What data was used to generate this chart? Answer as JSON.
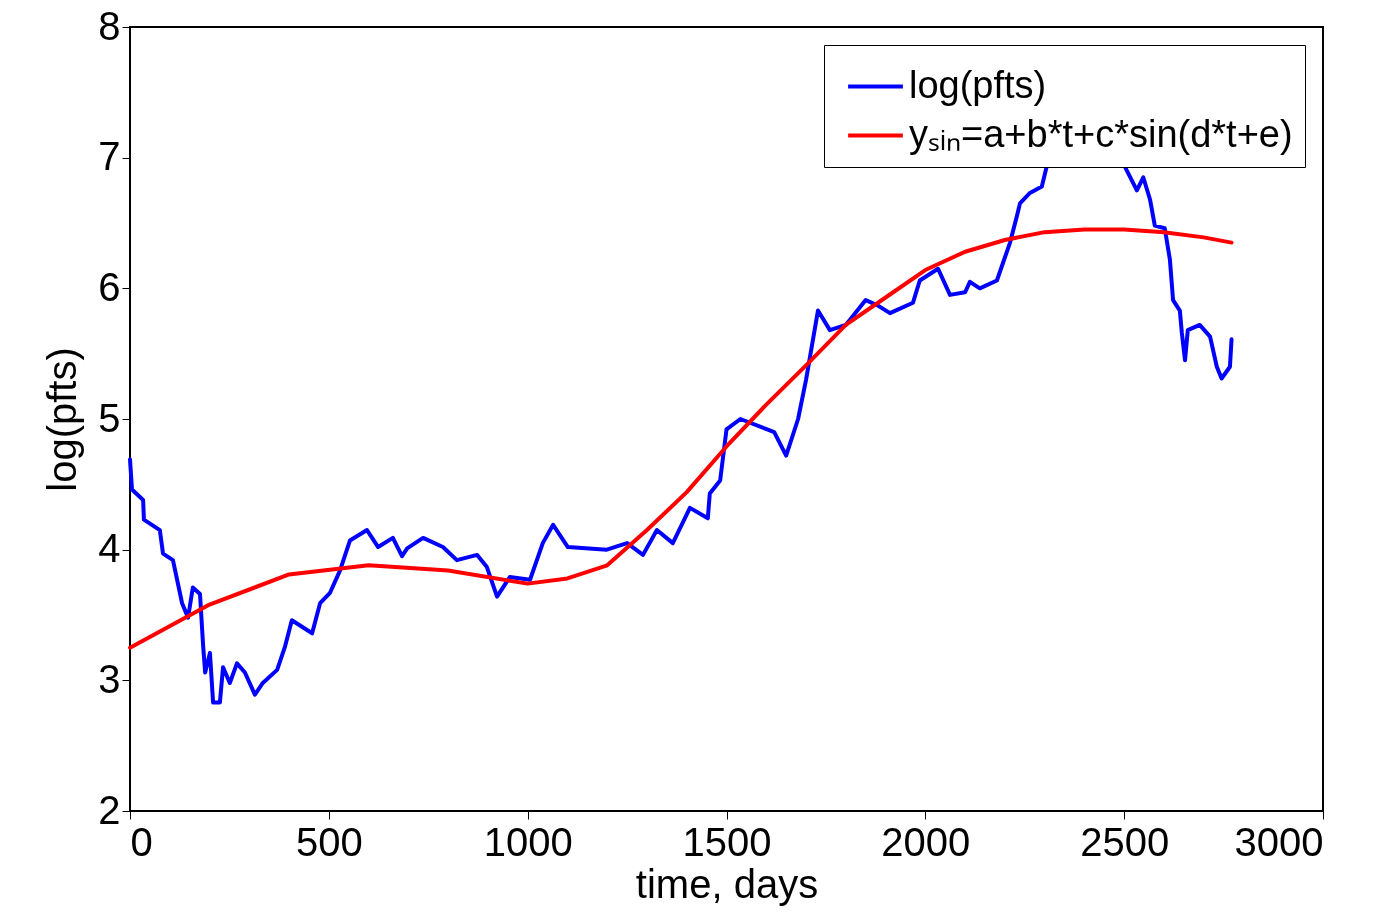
{
  "chart_data": {
    "type": "line",
    "xlabel": "time, days",
    "ylabel": "log(pfts)",
    "xlim": [
      0,
      3000
    ],
    "xticks": [
      0,
      500,
      1000,
      1500,
      2000,
      2500,
      3000
    ],
    "ylim": [
      2,
      8
    ],
    "yticks": [
      2,
      3,
      4,
      5,
      6,
      7,
      8
    ],
    "grid": false,
    "legend": "top right",
    "line_style": "solid",
    "marker": "none",
    "series": [
      {
        "name": "log(pfts)",
        "color": "#0000ff",
        "x": [
          0,
          5,
          33,
          35,
          75,
          83,
          108,
          131,
          146,
          158,
          176,
          184,
          189,
          201,
          209,
          226,
          234,
          251,
          269,
          289,
          314,
          334,
          370,
          390,
          407,
          458,
          478,
          503,
          528,
          553,
          596,
          624,
          661,
          684,
          697,
          737,
          787,
          822,
          873,
          897,
          923,
          955,
          1006,
          1038,
          1064,
          1101,
          1199,
          1250,
          1290,
          1325,
          1365,
          1408,
          1453,
          1458,
          1484,
          1500,
          1535,
          1620,
          1650,
          1680,
          1700,
          1730,
          1760,
          1800,
          1850,
          1880,
          1911,
          1969,
          1986,
          2032,
          2062,
          2100,
          2112,
          2137,
          2180,
          2213,
          2230,
          2238,
          2263,
          2293,
          2305,
          2400,
          2502,
          2532,
          2548,
          2565,
          2577,
          2602,
          2615,
          2623,
          2640,
          2645,
          2653,
          2660,
          2690,
          2716,
          2733,
          2745,
          2766,
          2770
        ],
        "values": [
          4.69,
          4.46,
          4.38,
          4.23,
          4.15,
          3.97,
          3.92,
          3.59,
          3.48,
          3.71,
          3.66,
          3.26,
          3.06,
          3.21,
          2.83,
          2.83,
          3.1,
          2.98,
          3.13,
          3.06,
          2.89,
          2.98,
          3.08,
          3.26,
          3.46,
          3.36,
          3.59,
          3.67,
          3.84,
          4.07,
          4.15,
          4.02,
          4.09,
          3.95,
          4.01,
          4.09,
          4.02,
          3.92,
          3.96,
          3.87,
          3.64,
          3.79,
          3.77,
          4.05,
          4.19,
          4.02,
          4.0,
          4.05,
          3.96,
          4.15,
          4.05,
          4.32,
          4.24,
          4.43,
          4.53,
          4.92,
          5.0,
          4.9,
          4.72,
          5.0,
          5.3,
          5.83,
          5.68,
          5.72,
          5.91,
          5.87,
          5.81,
          5.89,
          6.06,
          6.15,
          5.95,
          5.97,
          6.05,
          6.0,
          6.06,
          6.35,
          6.55,
          6.65,
          6.73,
          6.78,
          6.93,
          null,
          6.93,
          6.75,
          6.85,
          6.68,
          6.48,
          6.46,
          6.22,
          5.91,
          5.83,
          5.66,
          5.45,
          5.68,
          5.72,
          5.63,
          5.4,
          5.31,
          5.4,
          5.61
        ]
      },
      {
        "name": "yₛᵢₙ=a+b*t+c*sin(d*t+e)",
        "color": "#ff0000",
        "x": [
          0,
          200,
          400,
          600,
          800,
          1000,
          1100,
          1200,
          1300,
          1400,
          1500,
          1600,
          1700,
          1800,
          1900,
          2000,
          2100,
          2200,
          2300,
          2400,
          2500,
          2600,
          2700,
          2770
        ],
        "values": [
          3.25,
          3.58,
          3.81,
          3.88,
          3.84,
          3.74,
          3.78,
          3.88,
          4.15,
          4.44,
          4.79,
          5.11,
          5.41,
          5.72,
          5.93,
          6.14,
          6.28,
          6.37,
          6.43,
          6.45,
          6.45,
          6.43,
          6.39,
          6.35
        ]
      }
    ]
  }
}
